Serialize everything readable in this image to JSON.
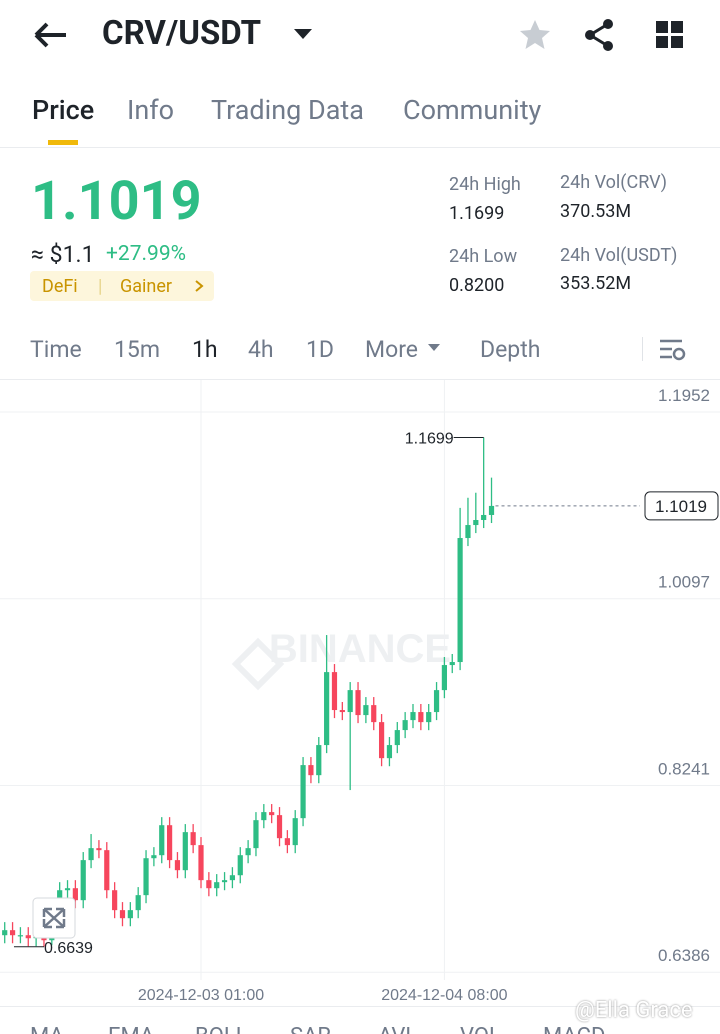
{
  "header": {
    "pair": "CRV/USDT"
  },
  "tabs": [
    "Price",
    "Info",
    "Trading Data",
    "Community"
  ],
  "stats": {
    "price": "1.1019",
    "usd": "≈ $1.1",
    "change": "+27.99%",
    "tags": [
      "DeFi",
      "Gainer"
    ],
    "high_label": "24h High",
    "high": "1.1699",
    "low_label": "24h Low",
    "low": "0.8200",
    "vol_crv_label": "24h Vol(CRV)",
    "vol_crv": "370.53M",
    "vol_usdt_label": "24h Vol(USDT)",
    "vol_usdt": "353.52M"
  },
  "intervals": [
    "Time",
    "15m",
    "1h",
    "4h",
    "1D",
    "More",
    "Depth"
  ],
  "indicators": [
    "MA",
    "EMA",
    "BOLL",
    "SAR",
    "AVL",
    "VOL",
    "MACD"
  ],
  "watermark": "BINANCE",
  "credit": "@Ella Grace",
  "chart_data": {
    "type": "candlestick",
    "up_color": "#2ebd85",
    "down_color": "#f6465d",
    "grid": true,
    "ylim": [
      0.6309,
      1.227
    ],
    "yticks": [
      1.1952,
      1.0097,
      0.8241,
      0.6386
    ],
    "xlim": [
      -0.6,
      91.1
    ],
    "xticks": [
      {
        "value": 25,
        "label": "2024-12-03 01:00"
      },
      {
        "value": 56,
        "label": "2024-12-04 08:00"
      }
    ],
    "candles": [
      [
        0.6754,
        0.6884,
        0.6674,
        0.6804
      ],
      [
        0.6804,
        0.6884,
        0.6674,
        0.6754
      ],
      [
        0.6754,
        0.6834,
        0.6674,
        0.6754
      ],
      [
        0.6754,
        0.6834,
        0.6644,
        0.6724
      ],
      [
        0.6724,
        0.6834,
        0.6644,
        0.6754
      ],
      [
        0.6754,
        0.6834,
        0.6639,
        0.6704
      ],
      [
        0.6704,
        0.6884,
        0.6654,
        0.6804
      ],
      [
        0.6804,
        0.7281,
        0.6724,
        0.7201
      ],
      [
        0.7201,
        0.7301,
        0.7121,
        0.7221
      ],
      [
        0.7221,
        0.7301,
        0.7022,
        0.7102
      ],
      [
        0.7102,
        0.758,
        0.7022,
        0.75
      ],
      [
        0.75,
        0.7759,
        0.742,
        0.7619
      ],
      [
        0.7619,
        0.7699,
        0.7519,
        0.7599
      ],
      [
        0.7599,
        0.7679,
        0.7121,
        0.7201
      ],
      [
        0.7201,
        0.7281,
        0.6923,
        0.7003
      ],
      [
        0.7003,
        0.7083,
        0.6843,
        0.6923
      ],
      [
        0.6923,
        0.7083,
        0.6843,
        0.7003
      ],
      [
        0.7003,
        0.7232,
        0.6923,
        0.7152
      ],
      [
        0.7152,
        0.7599,
        0.7072,
        0.7519
      ],
      [
        0.7519,
        0.7629,
        0.7439,
        0.7549
      ],
      [
        0.7549,
        0.7927,
        0.7469,
        0.7847
      ],
      [
        0.7847,
        0.7927,
        0.742,
        0.75
      ],
      [
        0.75,
        0.758,
        0.732,
        0.74
      ],
      [
        0.74,
        0.7858,
        0.732,
        0.7778
      ],
      [
        0.7778,
        0.7858,
        0.7569,
        0.7649
      ],
      [
        0.7649,
        0.7729,
        0.7221,
        0.7301
      ],
      [
        0.7301,
        0.7381,
        0.7141,
        0.7221
      ],
      [
        0.7221,
        0.7361,
        0.7141,
        0.7281
      ],
      [
        0.7281,
        0.7381,
        0.7201,
        0.7301
      ],
      [
        0.7301,
        0.743,
        0.7221,
        0.735
      ],
      [
        0.735,
        0.7629,
        0.727,
        0.7549
      ],
      [
        0.7549,
        0.7699,
        0.7469,
        0.7619
      ],
      [
        0.7619,
        0.7977,
        0.7539,
        0.7897
      ],
      [
        0.7897,
        0.8057,
        0.7817,
        0.7977
      ],
      [
        0.7977,
        0.8057,
        0.7867,
        0.7947
      ],
      [
        0.7947,
        0.8027,
        0.7638,
        0.7718
      ],
      [
        0.7718,
        0.7798,
        0.7569,
        0.7649
      ],
      [
        0.7649,
        0.7997,
        0.7569,
        0.7917
      ],
      [
        0.7917,
        0.8524,
        0.7837,
        0.8444
      ],
      [
        0.8444,
        0.8524,
        0.8264,
        0.8344
      ],
      [
        0.8344,
        0.8723,
        0.8264,
        0.8643
      ],
      [
        0.8643,
        0.9736,
        0.8563,
        0.9368
      ],
      [
        0.9368,
        0.9448,
        0.8911,
        0.8991
      ],
      [
        0.8991,
        0.9071,
        0.8891,
        0.8971
      ],
      [
        0.8971,
        0.9269,
        0.8196,
        0.9189
      ],
      [
        0.9189,
        0.9269,
        0.8861,
        0.8941
      ],
      [
        0.8941,
        0.912,
        0.8861,
        0.904
      ],
      [
        0.904,
        0.912,
        0.8791,
        0.8871
      ],
      [
        0.8871,
        0.8951,
        0.8433,
        0.8513
      ],
      [
        0.8513,
        0.8723,
        0.8433,
        0.8643
      ],
      [
        0.8643,
        0.8872,
        0.8563,
        0.8792
      ],
      [
        0.8792,
        0.8971,
        0.8712,
        0.8891
      ],
      [
        0.8891,
        0.9051,
        0.8811,
        0.8971
      ],
      [
        0.8971,
        0.9051,
        0.8791,
        0.8871
      ],
      [
        0.8871,
        0.9051,
        0.8791,
        0.8971
      ],
      [
        0.8971,
        0.9269,
        0.8891,
        0.9189
      ],
      [
        0.9189,
        0.9518,
        0.9109,
        0.9438
      ],
      [
        0.9438,
        0.9548,
        0.9358,
        0.9468
      ],
      [
        0.9468,
        1.1,
        0.9388,
        1.07
      ],
      [
        1.07,
        1.11,
        1.062,
        1.0829
      ],
      [
        1.0829,
        1.115,
        1.0749,
        1.0879
      ],
      [
        1.0879,
        1.1699,
        1.0799,
        1.0929
      ],
      [
        1.0929,
        1.13,
        1.0849,
        1.1019
      ]
    ]
  }
}
